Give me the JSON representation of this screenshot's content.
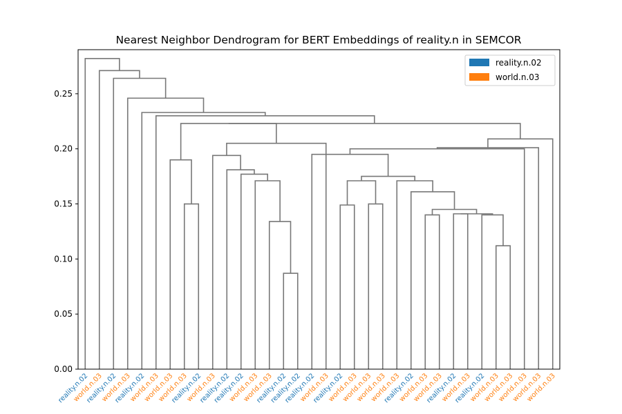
{
  "chart_data": {
    "type": "dendrogram",
    "title": "Nearest Neighbor Dendrogram for BERT Embeddings of reality.n in SEMCOR",
    "xlabel": "",
    "ylabel": "",
    "ylim": [
      0,
      0.29
    ],
    "y_ticks": [
      "0.00",
      "0.05",
      "0.10",
      "0.15",
      "0.20",
      "0.25"
    ],
    "y_tick_values": [
      0,
      0.05,
      0.1,
      0.15,
      0.2,
      0.25
    ],
    "grid": false,
    "legend_position": "top-right",
    "legend": [
      {
        "label": "reality.n.02",
        "color": "#1f77b4"
      },
      {
        "label": "world.n.03",
        "color": "#ff7f0e"
      }
    ],
    "link_color": "#777777",
    "leaves": [
      {
        "label": "reality.n.02",
        "sense": "reality.n.02"
      },
      {
        "label": "world.n.03",
        "sense": "world.n.03"
      },
      {
        "label": "reality.n.02",
        "sense": "reality.n.02"
      },
      {
        "label": "world.n.03",
        "sense": "world.n.03"
      },
      {
        "label": "reality.n.02",
        "sense": "reality.n.02"
      },
      {
        "label": "world.n.03",
        "sense": "world.n.03"
      },
      {
        "label": "world.n.03",
        "sense": "world.n.03"
      },
      {
        "label": "world.n.03",
        "sense": "world.n.03"
      },
      {
        "label": "reality.n.02",
        "sense": "reality.n.02"
      },
      {
        "label": "world.n.03",
        "sense": "world.n.03"
      },
      {
        "label": "reality.n.02",
        "sense": "reality.n.02"
      },
      {
        "label": "reality.n.02",
        "sense": "reality.n.02"
      },
      {
        "label": "world.n.03",
        "sense": "world.n.03"
      },
      {
        "label": "world.n.03",
        "sense": "world.n.03"
      },
      {
        "label": "reality.n.02",
        "sense": "reality.n.02"
      },
      {
        "label": "reality.n.02",
        "sense": "reality.n.02"
      },
      {
        "label": "reality.n.02",
        "sense": "reality.n.02"
      },
      {
        "label": "world.n.03",
        "sense": "world.n.03"
      },
      {
        "label": "reality.n.02",
        "sense": "reality.n.02"
      },
      {
        "label": "world.n.03",
        "sense": "world.n.03"
      },
      {
        "label": "world.n.03",
        "sense": "world.n.03"
      },
      {
        "label": "world.n.03",
        "sense": "world.n.03"
      },
      {
        "label": "world.n.03",
        "sense": "world.n.03"
      },
      {
        "label": "reality.n.02",
        "sense": "reality.n.02"
      },
      {
        "label": "world.n.03",
        "sense": "world.n.03"
      },
      {
        "label": "world.n.03",
        "sense": "world.n.03"
      },
      {
        "label": "reality.n.02",
        "sense": "reality.n.02"
      },
      {
        "label": "world.n.03",
        "sense": "world.n.03"
      },
      {
        "label": "reality.n.02",
        "sense": "reality.n.02"
      },
      {
        "label": "world.n.03",
        "sense": "world.n.03"
      },
      {
        "label": "world.n.03",
        "sense": "world.n.03"
      },
      {
        "label": "world.n.03",
        "sense": "world.n.03"
      },
      {
        "label": "world.n.03",
        "sense": "world.n.03"
      },
      {
        "label": "world.n.03",
        "sense": "world.n.03"
      }
    ],
    "merges": [
      {
        "a": 20,
        "b": 21,
        "height": 0.112
      },
      {
        "a": 19,
        "b": 34,
        "height": 0.14
      },
      {
        "a": 18,
        "b": 35,
        "height": 0.141
      },
      {
        "a": 17,
        "b": 36,
        "height": 0.141
      },
      {
        "a": 15,
        "b": 16,
        "height": 0.14
      },
      {
        "a": 38,
        "b": 37,
        "height": 0.145
      },
      {
        "a": 14,
        "b": 39,
        "height": 0.161
      },
      {
        "a": 13,
        "b": 40,
        "height": 0.171
      },
      {
        "a": 9,
        "b": 10,
        "height": 0.087
      },
      {
        "a": 8,
        "b": 42,
        "height": 0.134
      },
      {
        "a": 7,
        "b": 43,
        "height": 0.171
      },
      {
        "a": 6,
        "b": 44,
        "height": 0.177
      },
      {
        "a": 5,
        "b": 45,
        "height": 0.181
      },
      {
        "a": 4,
        "b": 46,
        "height": 0.194
      },
      {
        "a": 2,
        "b": 3,
        "height": 0.15
      },
      {
        "a": 1,
        "b": 48,
        "height": 0.19
      },
      {
        "a": 0,
        "b": 49,
        "height": 0.223
      },
      {
        "a": 10,
        "b": 11,
        "height": 0.149
      },
      {
        "a": 12,
        "b": 12,
        "height": 0.15
      }
    ]
  }
}
